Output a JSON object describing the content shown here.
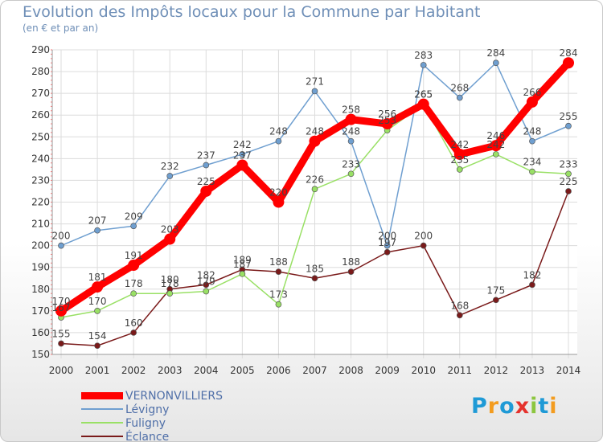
{
  "title": "Evolution des Impôts locaux pour la Commune par Habitant",
  "subtitle": "(en € et par an)",
  "logo": {
    "text": "Proxiti",
    "letters": [
      {
        "ch": "P",
        "color": "#1f9ad6"
      },
      {
        "ch": "r",
        "color": "#f39c1f"
      },
      {
        "ch": "o",
        "color": "#1f9ad6"
      },
      {
        "ch": "x",
        "color": "#e5322d"
      },
      {
        "ch": "i",
        "color": "#8cc63f"
      },
      {
        "ch": "t",
        "color": "#1f9ad6"
      },
      {
        "ch": "i",
        "color": "#f39c1f"
      }
    ]
  },
  "chart_data": {
    "type": "line",
    "title": "Evolution des Impôts locaux pour la Commune par Habitant",
    "ylabel": "(en € et par an)",
    "xlabel": "",
    "categories": [
      "2000",
      "2001",
      "2002",
      "2003",
      "2004",
      "2005",
      "2006",
      "2007",
      "2008",
      "2009",
      "2010",
      "2011",
      "2012",
      "2013",
      "2014"
    ],
    "ylim": [
      150,
      290
    ],
    "yticks": [
      150,
      160,
      170,
      180,
      190,
      200,
      210,
      220,
      230,
      240,
      250,
      260,
      270,
      280,
      290
    ],
    "grid": true,
    "legend_position": "bottom-left",
    "series": [
      {
        "name": "VERNONVILLIERS",
        "color": "#ff0000",
        "emphasis": true,
        "values": [
          170,
          181,
          191,
          203,
          225,
          237,
          220,
          248,
          258,
          256,
          265,
          242,
          246,
          266,
          284
        ]
      },
      {
        "name": "Lévigny",
        "color": "#6f9fd0",
        "values": [
          200,
          207,
          209,
          232,
          237,
          242,
          248,
          271,
          248,
          200,
          283,
          268,
          284,
          248,
          255
        ]
      },
      {
        "name": "Fuligny",
        "color": "#99e065",
        "values": [
          167,
          170,
          178,
          178,
          179,
          187,
          173,
          226,
          233,
          253,
          265,
          235,
          242,
          234,
          233
        ]
      },
      {
        "name": "Éclance",
        "color": "#7a1a1a",
        "values": [
          155,
          154,
          160,
          180,
          182,
          189,
          188,
          185,
          188,
          197,
          200,
          168,
          175,
          182,
          225
        ]
      }
    ],
    "data_labels": [
      [
        "170",
        "181",
        "191",
        "203",
        "225",
        "237",
        "220",
        "248",
        "258",
        "256",
        "265",
        "242",
        "246",
        "266",
        "284"
      ],
      [
        "200",
        "207",
        "209",
        "232",
        "237",
        "242",
        "248",
        "271",
        "248",
        "200",
        "283",
        "268",
        "284",
        "248",
        "255"
      ],
      [
        "167",
        "170",
        "178",
        "178",
        "179",
        "187",
        "173",
        "226",
        "233",
        "253",
        "265",
        "235",
        "242",
        "234",
        "233"
      ],
      [
        "155",
        "154",
        "160",
        "180",
        "182",
        "189",
        "188",
        "185",
        "188",
        "197",
        "200",
        "168",
        "175",
        "182",
        "225"
      ]
    ]
  }
}
